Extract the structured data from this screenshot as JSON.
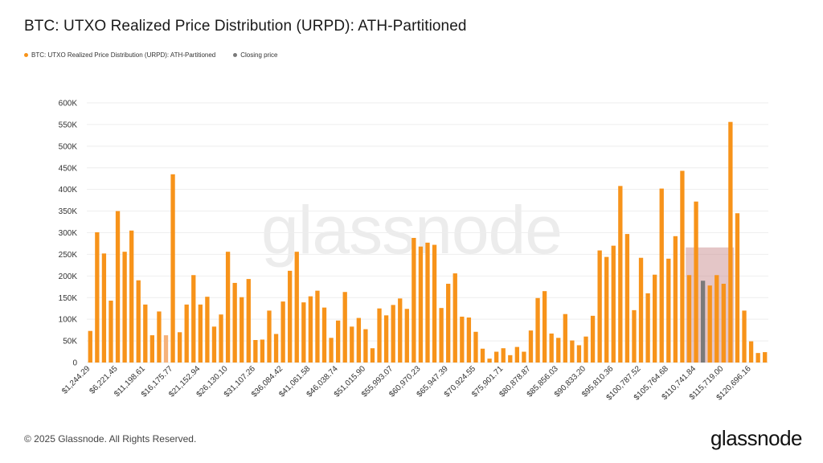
{
  "title": "BTC: UTXO Realized Price Distribution (URPD): ATH-Partitioned",
  "legend": [
    {
      "label": "BTC: UTXO Realized Price Distribution (URPD): ATH-Partitioned",
      "color": "#f7931a"
    },
    {
      "label": "Closing price",
      "color": "#7a7a7a"
    }
  ],
  "watermark": "glassnode",
  "footer": "© 2025 Glassnode. All Rights Reserved.",
  "brand": "glassnode",
  "colors": {
    "bar": "#f7931a",
    "bar_faded": "#f6b27a",
    "closing": "#7a7a7a",
    "highlight": "rgba(196,128,130,0.45)",
    "grid": "#eeeeee"
  },
  "chart_data": {
    "type": "bar",
    "ylim": [
      0,
      600000
    ],
    "yticks": [
      {
        "v": 0,
        "label": "0"
      },
      {
        "v": 50000,
        "label": "50K"
      },
      {
        "v": 100000,
        "label": "100K"
      },
      {
        "v": 150000,
        "label": "150K"
      },
      {
        "v": 200000,
        "label": "200K"
      },
      {
        "v": 250000,
        "label": "250K"
      },
      {
        "v": 300000,
        "label": "300K"
      },
      {
        "v": 350000,
        "label": "350K"
      },
      {
        "v": 400000,
        "label": "400K"
      },
      {
        "v": 450000,
        "label": "450K"
      },
      {
        "v": 500000,
        "label": "500K"
      },
      {
        "v": 550000,
        "label": "550K"
      },
      {
        "v": 600000,
        "label": "600K"
      }
    ],
    "xtick_labels": [
      "$1,244.29",
      "$6,221.45",
      "$11,198.61",
      "$16,175.77",
      "$21,152.94",
      "$26,130.10",
      "$31,107.26",
      "$36,084.42",
      "$41,061.58",
      "$46,038.74",
      "$51,015.90",
      "$55,993.07",
      "$60,970.23",
      "$65,947.39",
      "$70,924.55",
      "$75,901.71",
      "$80,878.87",
      "$85,856.03",
      "$90,833.20",
      "$95,810.36",
      "$100,787.52",
      "$105,764.68",
      "$110,741.84",
      "$115,719.00",
      "$120,696.16"
    ],
    "xtick_every": 4,
    "values": [
      73000,
      301000,
      252000,
      143000,
      350000,
      256000,
      305000,
      190000,
      134000,
      63000,
      118000,
      63000,
      435000,
      70000,
      134000,
      202000,
      134000,
      152000,
      83000,
      111000,
      256000,
      184000,
      151000,
      193000,
      52000,
      53000,
      120000,
      66000,
      141000,
      212000,
      256000,
      139000,
      153000,
      166000,
      127000,
      57000,
      97000,
      163000,
      83000,
      103000,
      77000,
      33000,
      125000,
      109000,
      133000,
      148000,
      124000,
      288000,
      268000,
      277000,
      272000,
      126000,
      182000,
      206000,
      106000,
      104000,
      71000,
      32000,
      9000,
      25000,
      33000,
      17000,
      36000,
      25000,
      74000,
      149000,
      165000,
      67000,
      57000,
      112000,
      51000,
      40000,
      60000,
      108000,
      259000,
      244000,
      270000,
      408000,
      297000,
      121000,
      242000,
      160000,
      203000,
      402000,
      240000,
      292000,
      443000,
      202000,
      372000,
      189000,
      178000,
      202000,
      182000,
      556000,
      345000,
      120000,
      49000,
      22000,
      24000
    ],
    "faded_indices": [
      11
    ],
    "closing_index": 89,
    "highlight_range": {
      "from_index": 87,
      "to_index": 93,
      "top_value": 266000
    }
  }
}
